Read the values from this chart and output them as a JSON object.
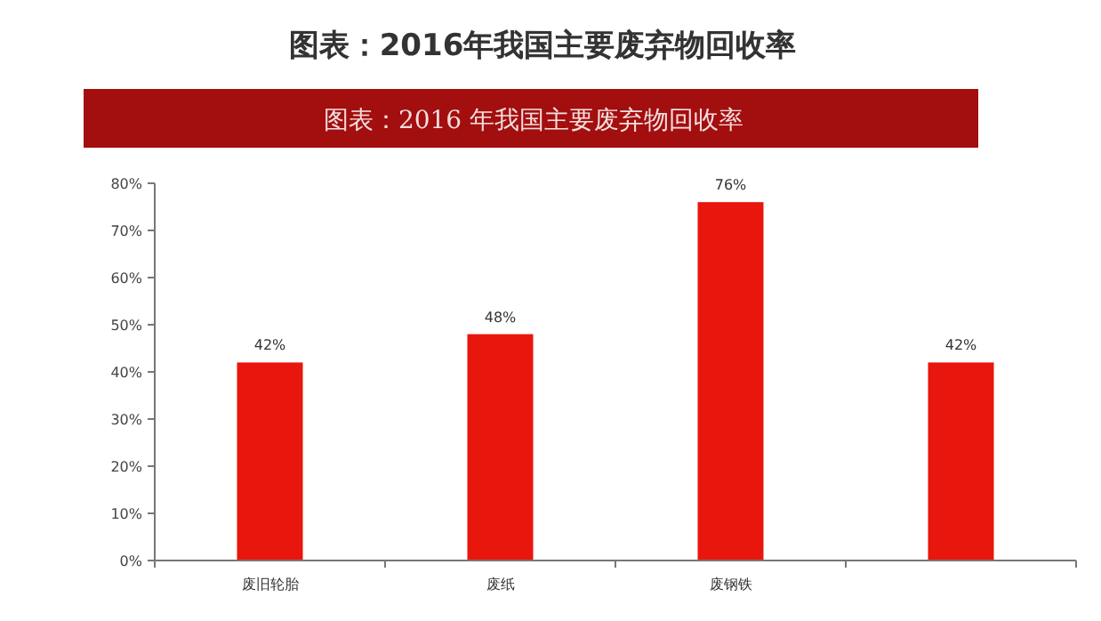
{
  "chart_data": {
    "type": "bar",
    "title": "图表：2016年我国主要废弃物回收率",
    "subtitle": "图表：2016 年我国主要废弃物回收率",
    "categories": [
      "废旧轮胎",
      "废纸",
      "废钢铁",
      null
    ],
    "values": [
      42,
      48,
      76,
      42
    ],
    "value_labels": [
      "42%",
      "48%",
      "76%",
      "42%"
    ],
    "color": "#e8160c",
    "ylim": [
      0,
      80
    ],
    "yticks": [
      {
        "value": 0,
        "label": "0%"
      },
      {
        "value": 10,
        "label": "10%"
      },
      {
        "value": 20,
        "label": "20%"
      },
      {
        "value": 30,
        "label": "30%"
      },
      {
        "value": 40,
        "label": "40%"
      },
      {
        "value": 50,
        "label": "50%"
      },
      {
        "value": 60,
        "label": "60%"
      },
      {
        "value": 70,
        "label": "70%"
      },
      {
        "value": 80,
        "label": "80%"
      }
    ]
  }
}
